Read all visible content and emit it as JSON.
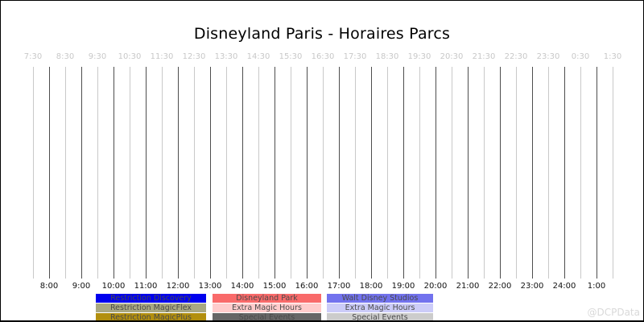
{
  "title": "Disneyland Paris - Horaires Parcs",
  "watermark": "@DCPData",
  "chart_data": {
    "type": "timeline",
    "title": "Disneyland Paris - Horaires Parcs",
    "subtitle": "",
    "grid": "vertical-only",
    "x_axis": {
      "interval_minutes": 30,
      "range_start": "7:30",
      "range_end": "1:30",
      "top_ticks_half_hours": [
        "7:30",
        "8:30",
        "9:30",
        "10:30",
        "11:30",
        "12:30",
        "13:30",
        "14:30",
        "15:30",
        "16:30",
        "17:30",
        "18:30",
        "19:30",
        "20:30",
        "21:30",
        "22:30",
        "23:30",
        "0:30",
        "1:30"
      ],
      "bottom_ticks_full_hours": [
        "8:00",
        "9:00",
        "10:00",
        "11:00",
        "12:00",
        "13:00",
        "14:00",
        "15:00",
        "16:00",
        "17:00",
        "18:00",
        "19:00",
        "20:00",
        "21:00",
        "22:00",
        "23:00",
        "24:00",
        "1:00"
      ]
    },
    "series": [],
    "colors": {
      "gridline_half_hour": "#c9c9c9",
      "gridline_full_hour": "#4d4d4d",
      "top_tick_text": "#c8c8c8",
      "bottom_tick_text": "#111111"
    }
  },
  "legend": {
    "text_color": "#4a4a4a",
    "columns": [
      {
        "items": [
          {
            "label": "Restriction Discovery",
            "color": "#0000ee"
          },
          {
            "label": "Restriction MagicFlex",
            "color": "#a9a882"
          },
          {
            "label": "Restriction MagicPlus",
            "color": "#b28f0e"
          }
        ]
      },
      {
        "items": [
          {
            "label": "Disneyland Park",
            "color": "#f96a6a"
          },
          {
            "label": "Extra Magic Hours",
            "color": "#ffcccc"
          },
          {
            "label": "Special Events",
            "color": "#666666"
          }
        ]
      },
      {
        "items": [
          {
            "label": "Walt Disney Studios",
            "color": "#7272ee"
          },
          {
            "label": "Extra Magic Hours",
            "color": "#ccccf8"
          },
          {
            "label": "Special Events",
            "color": "#cccccc"
          }
        ]
      }
    ]
  }
}
